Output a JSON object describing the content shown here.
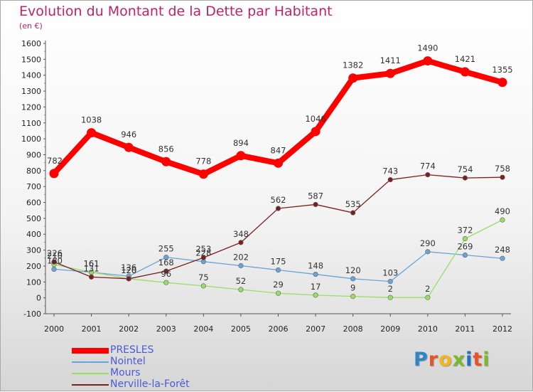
{
  "title": "Evolution du Montant de la Dette par Habitant",
  "subtitle": "(en €)",
  "logo": {
    "text": "Proxiti",
    "letter_colors": [
      "#2e86c9",
      "#e9522c",
      "#f2b51b",
      "#7ab929",
      "#1e73be",
      "#e9522c",
      "#7ab929"
    ]
  },
  "chart_data": {
    "type": "line",
    "title": "Evolution du Montant de la Dette par Habitant",
    "subtitle": "(en €)",
    "xlabel": "",
    "ylabel": "",
    "x": [
      "2000",
      "2001",
      "2002",
      "2003",
      "2004",
      "2005",
      "2006",
      "2007",
      "2008",
      "2009",
      "2010",
      "2011",
      "2012"
    ],
    "ylim": [
      -100,
      1600
    ],
    "yticks": [
      -100,
      0,
      100,
      200,
      300,
      400,
      500,
      600,
      700,
      800,
      900,
      1000,
      1100,
      1200,
      1300,
      1400,
      1500,
      1600
    ],
    "grid": false,
    "legend_position": "bottom-left",
    "series": [
      {
        "name": "PRESLES",
        "color": "#ff0000",
        "values": [
          782,
          1038,
          946,
          856,
          778,
          894,
          847,
          1046,
          1382,
          1411,
          1490,
          1421,
          1355
        ],
        "labels": [
          "782",
          "1038",
          "946",
          "856",
          "778",
          "894",
          "847",
          "1046",
          "1382",
          "1411",
          "1490",
          "1421",
          "1355"
        ]
      },
      {
        "name": "Nointel",
        "color": "#6ba3d6",
        "values": [
          180,
          161,
          136,
          255,
          228,
          202,
          175,
          148,
          120,
          103,
          290,
          269,
          248
        ],
        "labels": [
          "180",
          "161",
          "136",
          "255",
          "228",
          "202",
          "175",
          "148",
          "120",
          "103",
          "290",
          "269",
          "248"
        ]
      },
      {
        "name": "Mours",
        "color": "#99dd66",
        "values": [
          210,
          161,
          120,
          96,
          75,
          52,
          29,
          17,
          9,
          2,
          2,
          372,
          490
        ],
        "labels": [
          "210",
          "161",
          "120",
          "96",
          "75",
          "52",
          "29",
          "17",
          "9",
          "2",
          "2",
          "372",
          "490"
        ]
      },
      {
        "name": "Nerville-la-Forêt",
        "color": "#7a2020",
        "values": [
          226,
          131,
          120,
          168,
          253,
          348,
          562,
          587,
          535,
          743,
          774,
          754,
          758
        ],
        "labels": [
          "226",
          "131",
          "120",
          "168",
          "253",
          "348",
          "562",
          "587",
          "535",
          "743",
          "774",
          "754",
          "758"
        ]
      }
    ]
  }
}
